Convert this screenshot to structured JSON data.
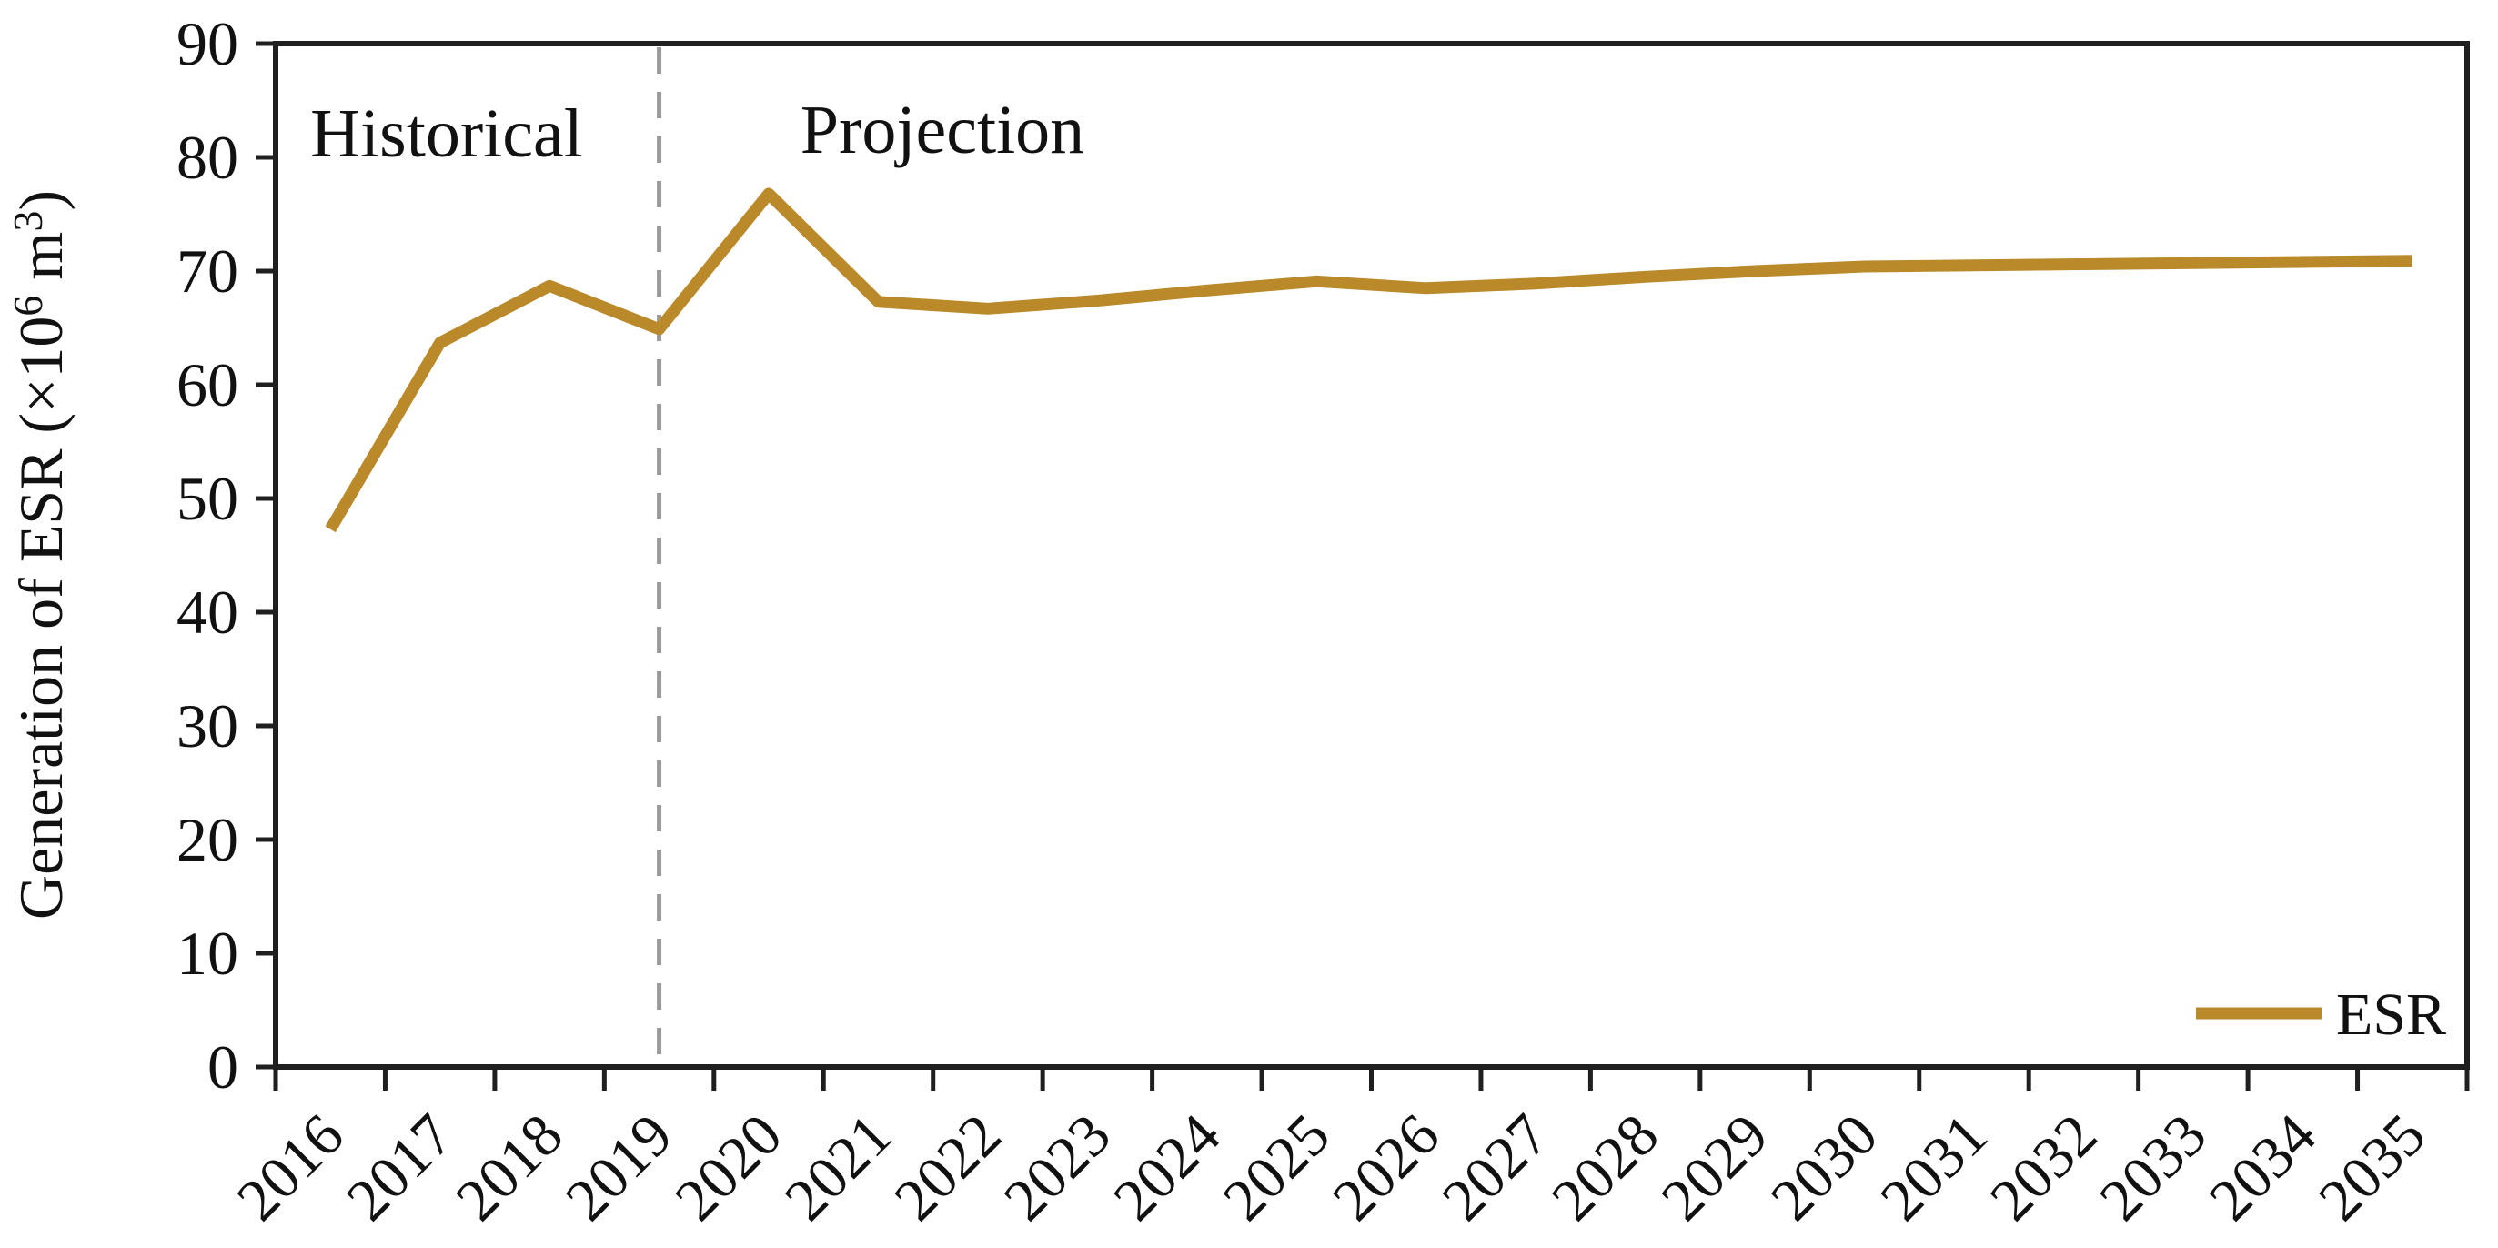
{
  "chart_data": {
    "type": "line",
    "title": "",
    "xlabel": "",
    "ylabel": "Generation of ESR (×10⁶ m³)",
    "ylabel_parts": {
      "prefix": "Generation of ESR (×10",
      "sup1": "6",
      "mid": " m",
      "sup2": "3",
      "suffix": ")"
    },
    "categories": [
      "2016",
      "2017",
      "2018",
      "2019",
      "2020",
      "2021",
      "2022",
      "2023",
      "2024",
      "2025",
      "2026",
      "2027",
      "2028",
      "2029",
      "2030",
      "2031",
      "2032",
      "2033",
      "2034",
      "2035"
    ],
    "series": [
      {
        "name": "ESR",
        "values": [
          47.3,
          63.7,
          68.7,
          64.9,
          76.8,
          67.3,
          66.7,
          67.4,
          68.3,
          69.1,
          68.5,
          68.9,
          69.5,
          70.0,
          70.4,
          70.5,
          70.6,
          70.7,
          70.8,
          70.9
        ],
        "color": "#B9892A"
      }
    ],
    "ylim": [
      0,
      90
    ],
    "y_tick_step": 10,
    "y_ticks": [
      0,
      10,
      20,
      30,
      40,
      50,
      60,
      70,
      80,
      90
    ],
    "grid": "off",
    "divider": {
      "at_category": "2019",
      "style": "dashed",
      "color": "#9B9B9B"
    },
    "annotations": [
      {
        "text": "Historical",
        "region": "left-of-divider"
      },
      {
        "text": "Projection",
        "region": "right-of-divider"
      }
    ],
    "legend": {
      "position": "bottom-right",
      "entries": [
        {
          "label": "ESR",
          "color": "#B9892A"
        }
      ]
    }
  },
  "colors": {
    "background": "#FFFFFF",
    "axis": "#1F1F1F",
    "text": "#111111",
    "line": "#B9892A",
    "divider": "#9B9B9B"
  }
}
